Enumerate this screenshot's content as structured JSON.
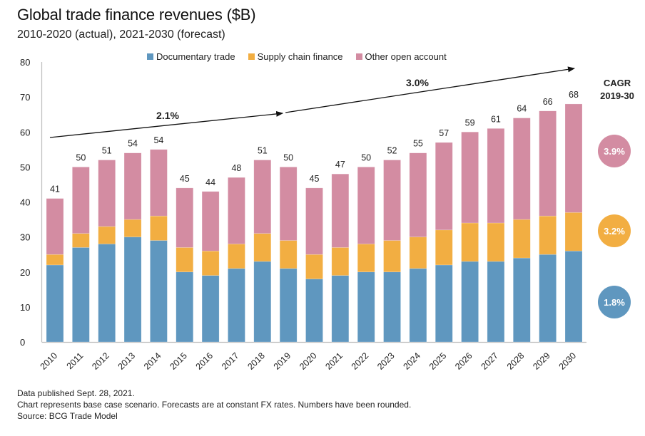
{
  "chart_data": {
    "type": "bar",
    "stacked": true,
    "title": "Global trade finance revenues ($B)",
    "subtitle": "2010-2020 (actual), 2021-2030 (forecast)",
    "xlabel": "",
    "ylabel": "",
    "ylim": [
      0,
      80
    ],
    "yticks": [
      0,
      10,
      20,
      30,
      40,
      50,
      60,
      70,
      80
    ],
    "grid": false,
    "legend_position": "top",
    "categories": [
      "2010",
      "2011",
      "2012",
      "2013",
      "2014",
      "2015",
      "2016",
      "2017",
      "2018",
      "2019",
      "2020",
      "2021",
      "2022",
      "2023",
      "2024",
      "2025",
      "2026",
      "2027",
      "2028",
      "2029",
      "2030"
    ],
    "series": [
      {
        "name": "Documentary trade",
        "color": "#5f97bf",
        "values": [
          22,
          27,
          28,
          30,
          29,
          20,
          19,
          21,
          23,
          21,
          18,
          19,
          20,
          20,
          21,
          22,
          23,
          23,
          24,
          25,
          26
        ]
      },
      {
        "name": "Supply chain finance",
        "color": "#f2ae42",
        "values": [
          3,
          4,
          5,
          5,
          7,
          7,
          7,
          7,
          8,
          8,
          7,
          8,
          8,
          9,
          9,
          10,
          11,
          11,
          11,
          11,
          11
        ]
      },
      {
        "name": "Other open account",
        "color": "#d38ca2",
        "values": [
          16,
          19,
          19,
          19,
          19,
          17,
          17,
          19,
          21,
          21,
          19,
          21,
          22,
          23,
          24,
          25,
          26,
          27,
          29,
          30,
          31
        ]
      }
    ],
    "total_labels": [
      "41",
      "50",
      "51",
      "54",
      "54",
      "45",
      "44",
      "48",
      "51",
      "50",
      "45",
      "47",
      "50",
      "52",
      "55",
      "57",
      "59",
      "61",
      "64",
      "66",
      "68"
    ],
    "annotations": [
      {
        "label": "2.1%",
        "type": "trend-arrow",
        "from": "2010",
        "to": "2019"
      },
      {
        "label": "3.0%",
        "type": "trend-arrow",
        "from": "2019",
        "to": "2030"
      }
    ],
    "cagr": {
      "heading_line1": "CAGR",
      "heading_line2": "2019-30",
      "items": [
        {
          "series": "Other open account",
          "value": "3.9%",
          "color": "#d38ca2"
        },
        {
          "series": "Supply chain finance",
          "value": "3.2%",
          "color": "#f2ae42"
        },
        {
          "series": "Documentary trade",
          "value": "1.8%",
          "color": "#5f97bf"
        }
      ]
    }
  },
  "footnotes": [
    "Data published Sept. 28, 2021.",
    "Chart represents base case scenario. Forecasts are at constant FX rates. Numbers have been rounded.",
    "Source: BCG Trade Model"
  ]
}
